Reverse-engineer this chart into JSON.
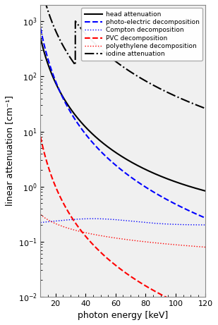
{
  "title": "",
  "xlabel": "photon energy [keV]",
  "ylabel": "linear attenuation [cm⁻¹]",
  "xlim": [
    10,
    120
  ],
  "ylim": [
    0.01,
    2000
  ],
  "legend_entries": [
    "head attenuation",
    "photo-electric decomposition",
    "Compton decomposition",
    "PVC decomposition",
    "polyethylene decomposition",
    "iodine attenuation"
  ],
  "line_styles": [
    "-",
    "--",
    ":",
    "--",
    ":",
    "-."
  ],
  "line_colors": [
    "black",
    "blue",
    "blue",
    "red",
    "red",
    "black"
  ],
  "line_widths": [
    1.5,
    1.5,
    1.0,
    1.5,
    1.0,
    1.5
  ],
  "x_ticks": [
    20,
    40,
    60,
    80,
    100,
    120
  ],
  "background": "#f0f0f0",
  "iodine_kedge": 33.2
}
